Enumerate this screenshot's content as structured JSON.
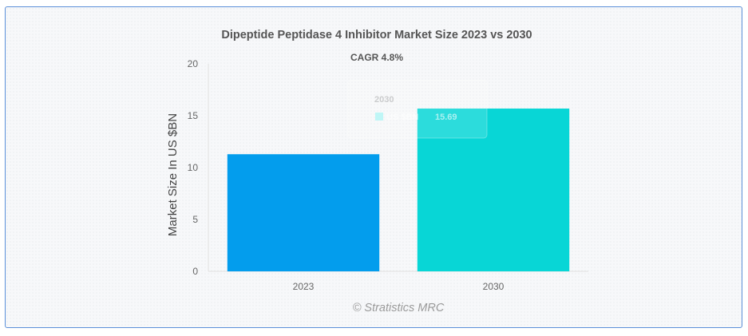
{
  "chart_data": {
    "type": "bar",
    "title": "Dipeptide Peptidase 4 Inhibitor Market Size 2023 vs 2030",
    "subtitle": "CAGR 4.8%",
    "xlabel": "",
    "ylabel": "Market Size In US $BN",
    "categories": [
      "2023",
      "2030"
    ],
    "values": [
      11.29,
      15.69
    ],
    "yticks": [
      "0",
      "5",
      "10",
      "15",
      "20"
    ],
    "ylim": [
      0,
      20
    ],
    "bar_colors": [
      "#039ded",
      "#08d6d6"
    ],
    "grid": false,
    "legend": "none",
    "tooltip": {
      "title": "2030",
      "series_label": "US $BN",
      "value_text": "15.69"
    },
    "watermark": "© Stratistics MRC"
  }
}
